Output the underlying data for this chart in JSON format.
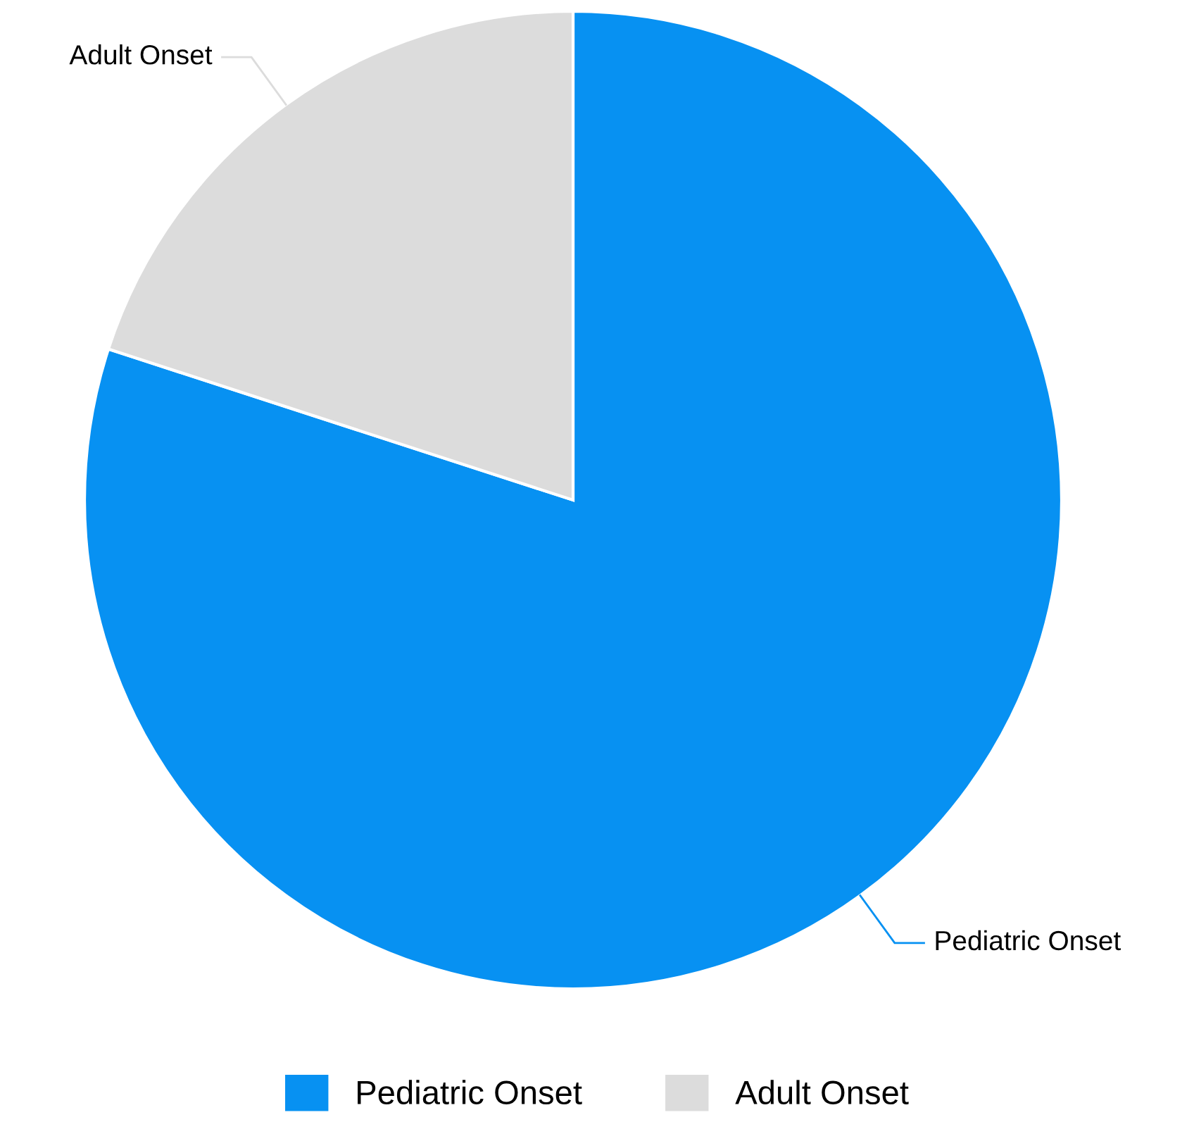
{
  "chart_data": {
    "type": "pie",
    "categories": [
      "Pediatric Onset",
      "Adult Onset"
    ],
    "values": [
      80,
      20
    ],
    "colors": [
      "#0791f2",
      "#dcdcdc"
    ],
    "legend": "bottom"
  }
}
